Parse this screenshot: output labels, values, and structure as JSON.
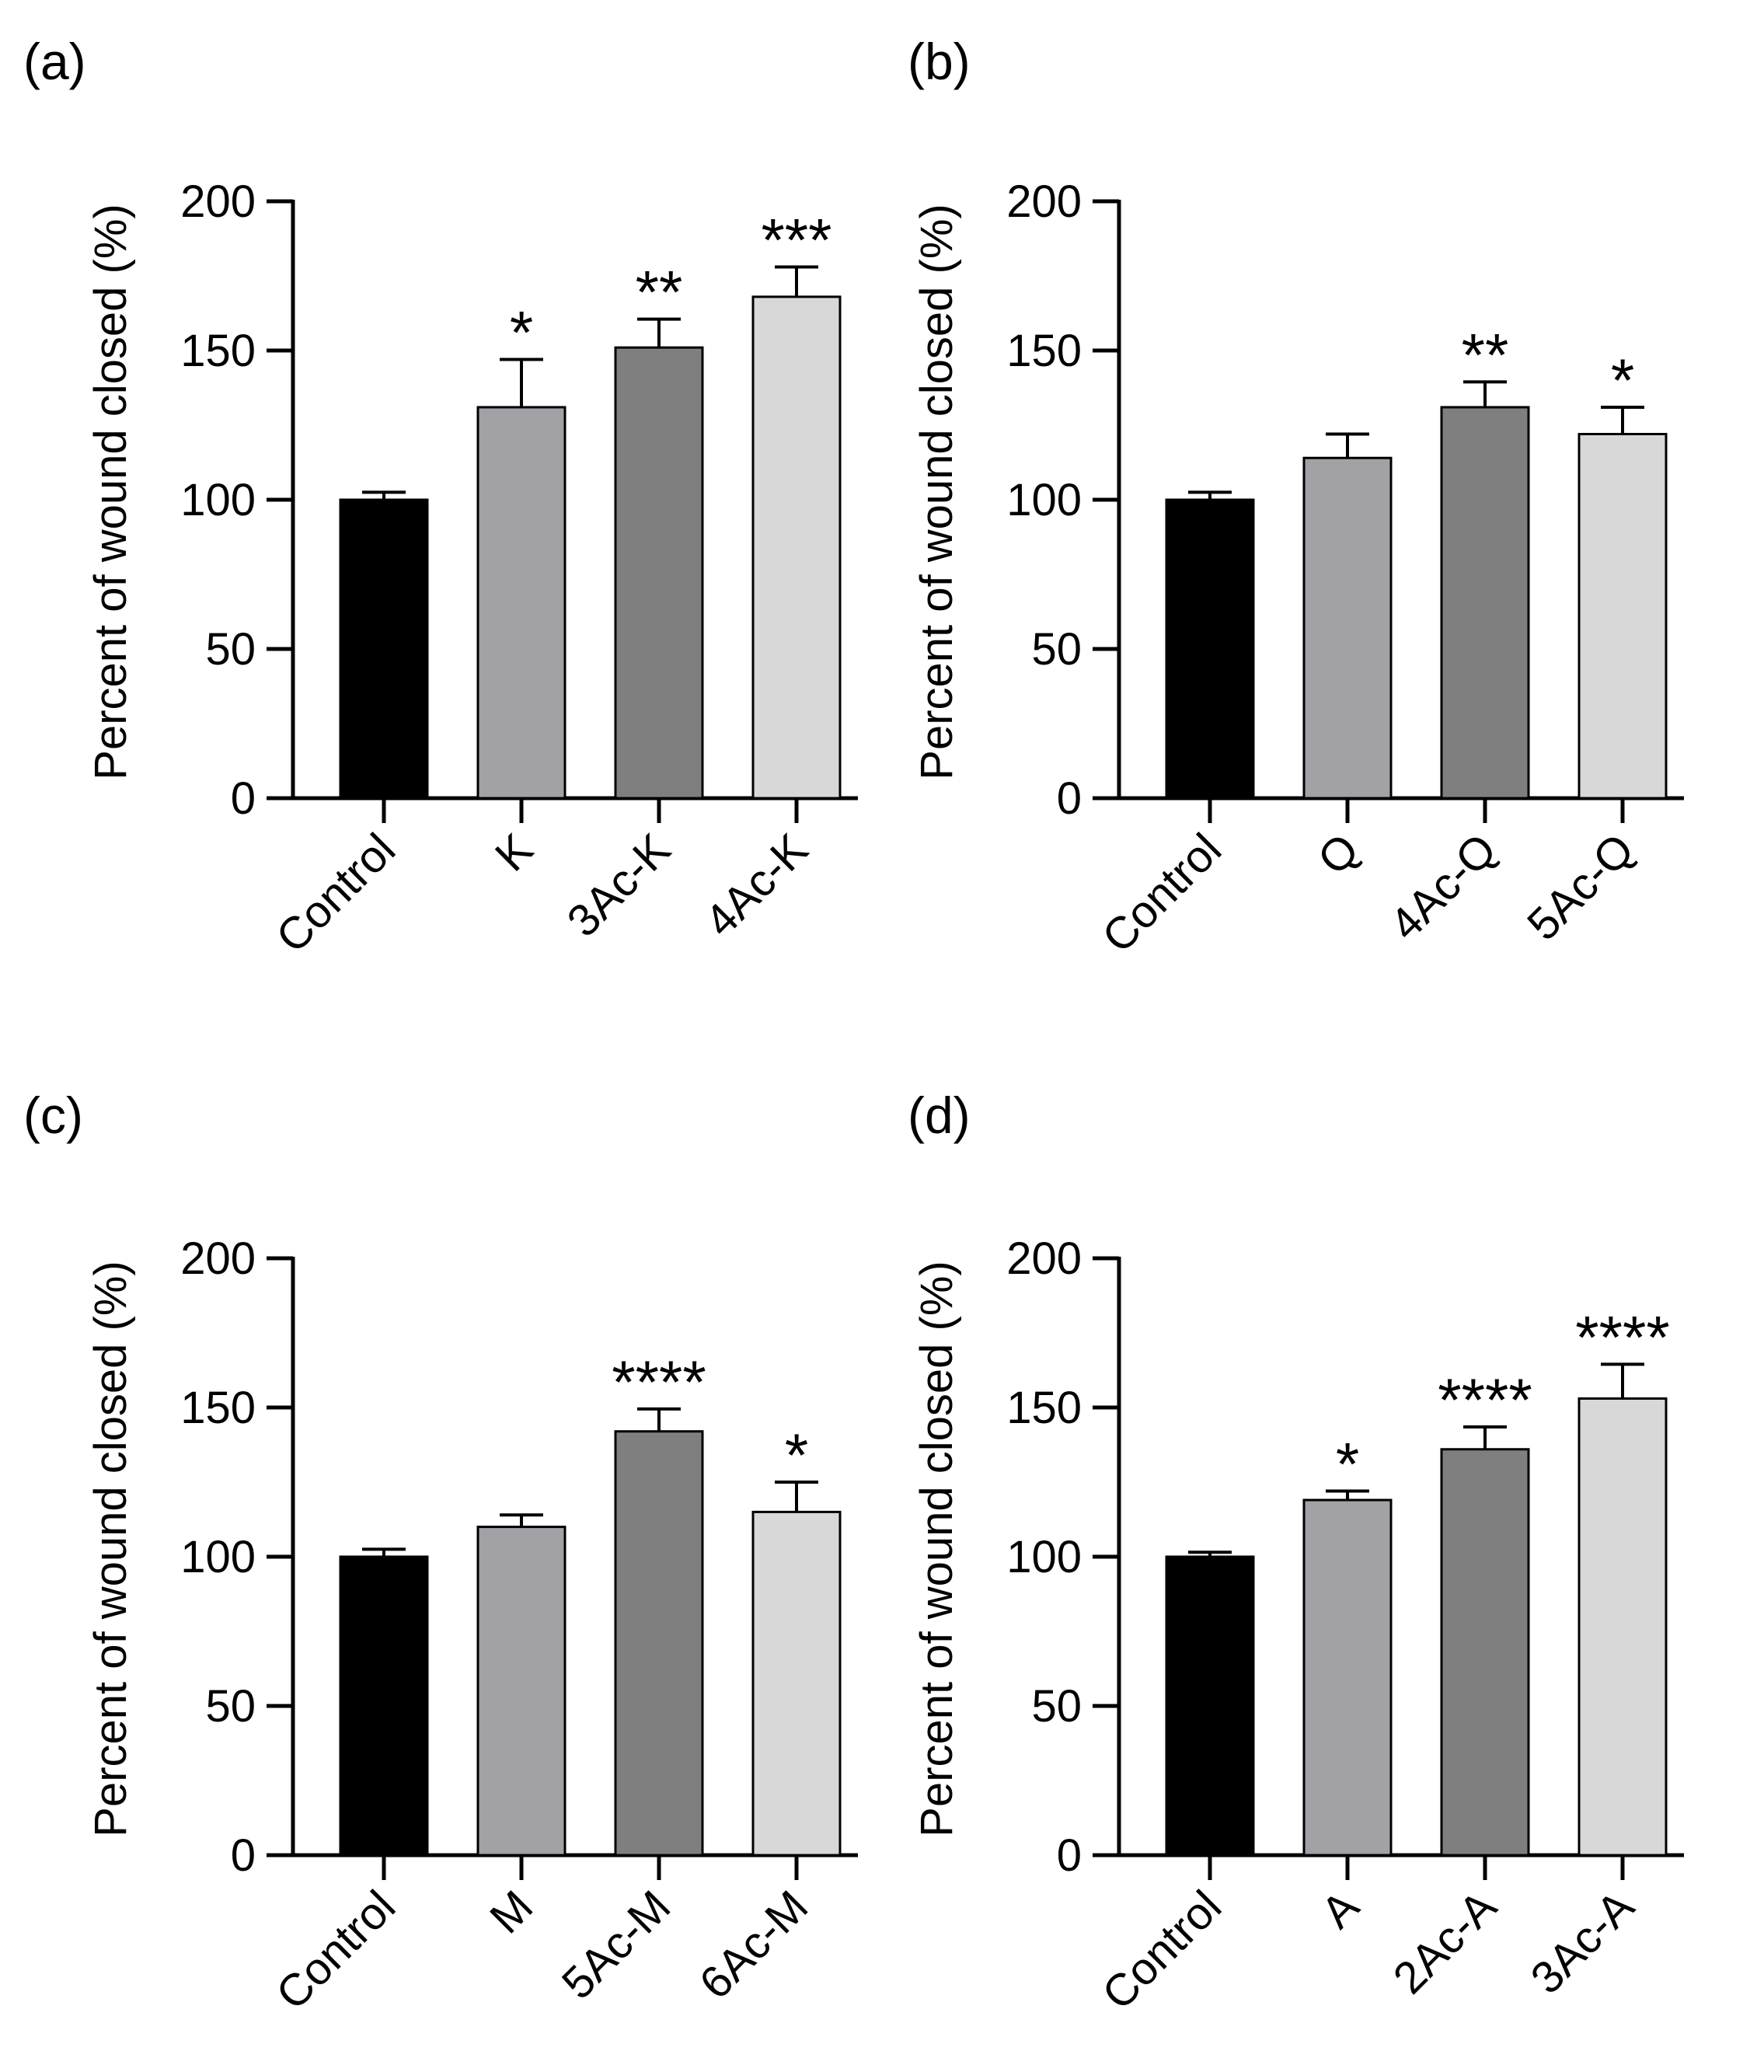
{
  "colors": {
    "axis": "#000000",
    "bar_outline": "#000000",
    "bars": [
      "#000000",
      "#a2a1a6",
      "#7f7f7f",
      "#d8d8d8"
    ]
  },
  "chart_data": [
    {
      "type": "bar",
      "panel_label": "(a)",
      "ylabel": "Percent of wound closed (%)",
      "xlabel": "",
      "ylim": [
        0,
        200
      ],
      "yticks": [
        "0",
        "50",
        "100",
        "150",
        "200"
      ],
      "categories": [
        "Control",
        "K",
        "3Ac-K",
        "4Ac-K"
      ],
      "values": [
        100,
        131,
        151,
        168
      ],
      "errors": [
        2.5,
        16,
        9.5,
        10
      ],
      "significance": [
        "",
        "*",
        "**",
        "***"
      ]
    },
    {
      "type": "bar",
      "panel_label": "(b)",
      "ylabel": "Percent of wound closed (%)",
      "xlabel": "",
      "ylim": [
        0,
        200
      ],
      "yticks": [
        "0",
        "50",
        "100",
        "150",
        "200"
      ],
      "categories": [
        "Control",
        "Q",
        "4Ac-Q",
        "5Ac-Q"
      ],
      "values": [
        100,
        114,
        131,
        122
      ],
      "errors": [
        2.5,
        8,
        8.5,
        9
      ],
      "significance": [
        "",
        "",
        "**",
        "*"
      ]
    },
    {
      "type": "bar",
      "panel_label": "(c)",
      "ylabel": "Percent of wound closed (%)",
      "xlabel": "",
      "ylim": [
        0,
        200
      ],
      "yticks": [
        "0",
        "50",
        "100",
        "150",
        "200"
      ],
      "categories": [
        "Control",
        "M",
        "5Ac-M",
        "6Ac-M"
      ],
      "values": [
        100,
        110,
        142,
        115
      ],
      "errors": [
        2.5,
        4,
        7.5,
        10
      ],
      "significance": [
        "",
        "",
        "****",
        "*"
      ]
    },
    {
      "type": "bar",
      "panel_label": "(d)",
      "ylabel": "Percent of wound closed (%)",
      "xlabel": "",
      "ylim": [
        0,
        200
      ],
      "yticks": [
        "0",
        "50",
        "100",
        "150",
        "200"
      ],
      "categories": [
        "Control",
        "A",
        "2Ac-A",
        "3Ac-A"
      ],
      "values": [
        100,
        119,
        136,
        153
      ],
      "errors": [
        1.5,
        3,
        7.5,
        11.5
      ],
      "significance": [
        "",
        "*",
        "****",
        "****"
      ]
    }
  ]
}
